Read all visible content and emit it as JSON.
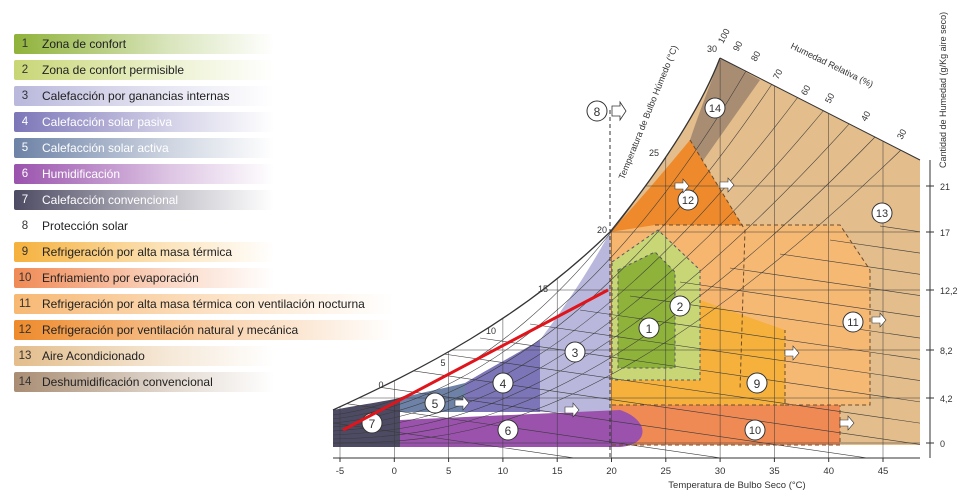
{
  "legend": [
    {
      "num": "1",
      "label": "Zona de confort",
      "color": "#8fb23a"
    },
    {
      "num": "2",
      "label": "Zona de confort permisible",
      "color": "#c8d675"
    },
    {
      "num": "3",
      "label": "Calefacción por ganancias internas",
      "color": "#b9b8dc"
    },
    {
      "num": "4",
      "label": "Calefacción solar pasiva",
      "color": "#7c76b8"
    },
    {
      "num": "5",
      "label": "Calefacción solar activa",
      "color": "#6d82a6"
    },
    {
      "num": "6",
      "label": "Humidificación",
      "color": "#9a52ad"
    },
    {
      "num": "7",
      "label": "Calefacción convencional",
      "color": "#4d4b63"
    },
    {
      "num": "8",
      "label": "Protección solar",
      "color": "#ffffff"
    },
    {
      "num": "9",
      "label": "Refrigeración por alta masa térmica",
      "color": "#f5b13c"
    },
    {
      "num": "10",
      "label": "Enfriamiento por evaporación",
      "color": "#f08a55"
    },
    {
      "num": "11",
      "label": "Refrigeración por alta masa térmica con ventilación nocturna",
      "color": "#f7b873"
    },
    {
      "num": "12",
      "label": "Refrigeración por ventilación natural y mecánica",
      "color": "#ee8a2b"
    },
    {
      "num": "13",
      "label": "Aire Acondicionado",
      "color": "#e3bd8b"
    },
    {
      "num": "14",
      "label": "Deshumidificación convencional",
      "color": "#a98d73"
    }
  ],
  "chart": {
    "x_axis_title": "Temperatura de Bulbo Seco (°C)",
    "x_ticks": [
      "-5",
      "0",
      "5",
      "10",
      "15",
      "20",
      "25",
      "30",
      "35",
      "40",
      "45"
    ],
    "right_axis_title": "Cantidad de Humedad (g/Kg aire seco)",
    "right_ticks": [
      "21",
      "17",
      "12,2",
      "8,2",
      "4,2",
      "0"
    ],
    "wet_bulb_title": "Temperatura de Bulbo Húmedo (°C)",
    "wet_bulb_ticks": [
      "0",
      "5",
      "10",
      "15",
      "20",
      "25",
      "30"
    ],
    "rh_title": "Humedad Relativa (%)",
    "rh_ticks": [
      "100",
      "90",
      "80",
      "70",
      "60",
      "50",
      "40",
      "30"
    ],
    "zone_numbers": [
      "1",
      "2",
      "3",
      "4",
      "5",
      "6",
      "7",
      "8",
      "9",
      "10",
      "11",
      "12",
      "13",
      "14"
    ],
    "colors": {
      "red_line": "#e0141a",
      "curve": "#333333"
    }
  }
}
